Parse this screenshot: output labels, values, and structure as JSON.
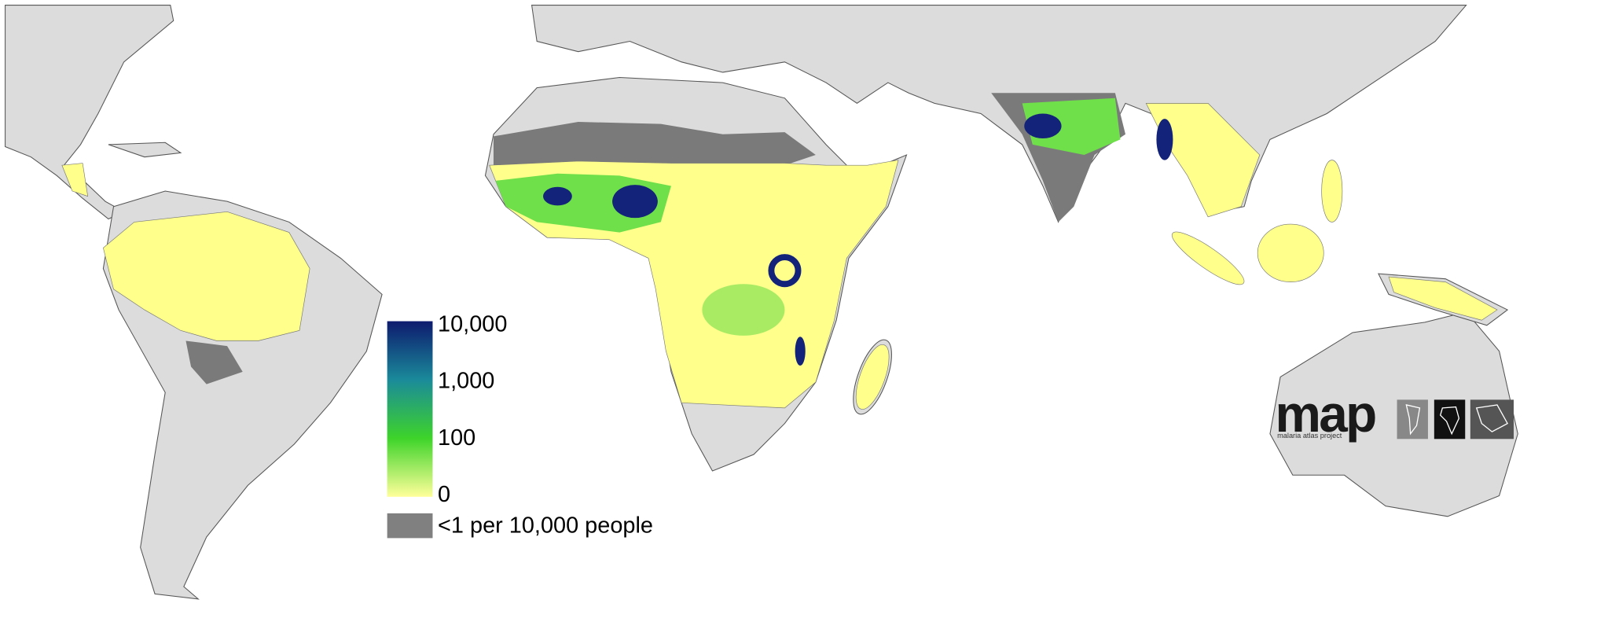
{
  "legend": {
    "scale_labels": [
      "10,000",
      "1,000",
      "100",
      "0"
    ],
    "colors": [
      "#0d1a6e",
      "#1a8a9a",
      "#3ed42a",
      "#ffff9a"
    ],
    "low_label": "<1 per 10,000 people",
    "low_color": "#808080"
  },
  "logo": {
    "title": "map",
    "subtitle": "malaria atlas project"
  }
}
